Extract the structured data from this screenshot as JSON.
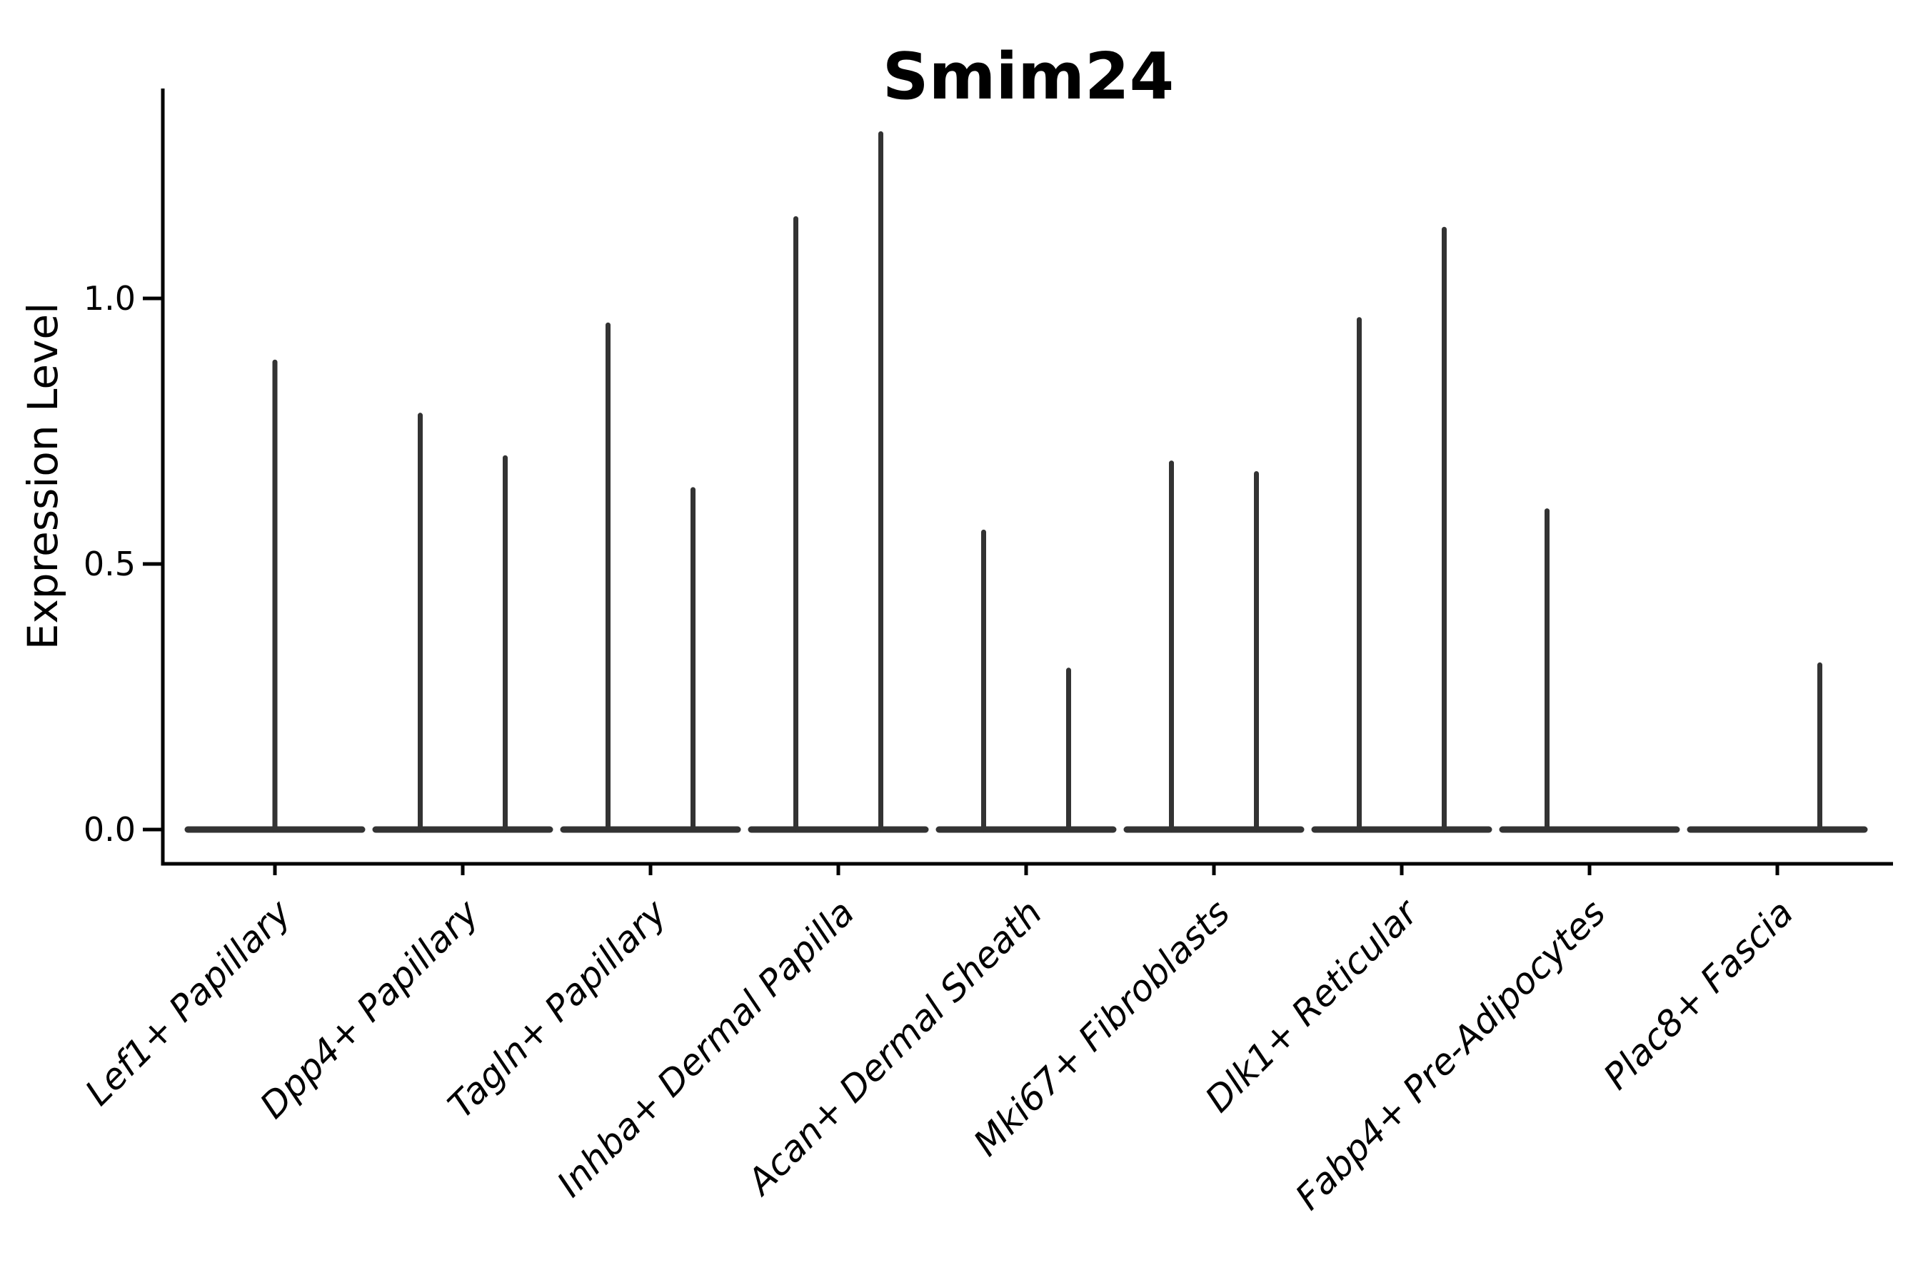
{
  "figure": {
    "title": "Smim24",
    "background_color": "#ffffff",
    "axis_color": "#000000",
    "violin_color": "#333333"
  },
  "chart_data": {
    "type": "violin",
    "title": "Smim24",
    "xlabel": "",
    "ylabel": "Expression Level",
    "ylim": [
      -0.065,
      1.4
    ],
    "yticks": [
      {
        "value": 0.0,
        "label": "0.0"
      },
      {
        "value": 0.5,
        "label": "0.5"
      },
      {
        "value": 1.0,
        "label": "1.0"
      }
    ],
    "grid": false,
    "legend": null,
    "x_tick_rotation": 45,
    "baseline_value": 0.0,
    "note": "Each category shows a violin collapsed to a flat line at 0 expression with thin vertical spikes reaching the maximum expression value; spikes sit at the left/right half-violin centers (offset ±0.226 of a category slot) or at the category center.",
    "categories": [
      "Lef1+ Papillary",
      "Dpp4+ Papillary",
      "Tagln+ Papillary",
      "Inhba+ Dermal Papilla",
      "Acan+ Dermal Sheath",
      "Mki67+ Fibroblasts",
      "Dlk1+ Reticular",
      "Fabp4+ Pre-Adipocytes",
      "Plac8+ Fascia"
    ],
    "violins": [
      {
        "category": "Lef1+ Papillary",
        "spikes": [
          {
            "side": "center",
            "max": 0.88
          }
        ]
      },
      {
        "category": "Dpp4+ Papillary",
        "spikes": [
          {
            "side": "left",
            "max": 0.78
          },
          {
            "side": "right",
            "max": 0.7
          }
        ]
      },
      {
        "category": "Tagln+ Papillary",
        "spikes": [
          {
            "side": "left",
            "max": 0.95
          },
          {
            "side": "right",
            "max": 0.64
          }
        ]
      },
      {
        "category": "Inhba+ Dermal Papilla",
        "spikes": [
          {
            "side": "left",
            "max": 1.15
          },
          {
            "side": "right",
            "max": 1.31
          }
        ]
      },
      {
        "category": "Acan+ Dermal Sheath",
        "spikes": [
          {
            "side": "left",
            "max": 0.56
          },
          {
            "side": "right",
            "max": 0.3
          }
        ]
      },
      {
        "category": "Mki67+ Fibroblasts",
        "spikes": [
          {
            "side": "left",
            "max": 0.69
          },
          {
            "side": "right",
            "max": 0.67
          }
        ]
      },
      {
        "category": "Dlk1+ Reticular",
        "spikes": [
          {
            "side": "left",
            "max": 0.96
          },
          {
            "side": "right",
            "max": 1.13
          }
        ]
      },
      {
        "category": "Fabp4+ Pre-Adipocytes",
        "spikes": [
          {
            "side": "left",
            "max": 0.6
          }
        ]
      },
      {
        "category": "Plac8+ Fascia",
        "spikes": [
          {
            "side": "right",
            "max": 0.31
          }
        ]
      }
    ]
  }
}
